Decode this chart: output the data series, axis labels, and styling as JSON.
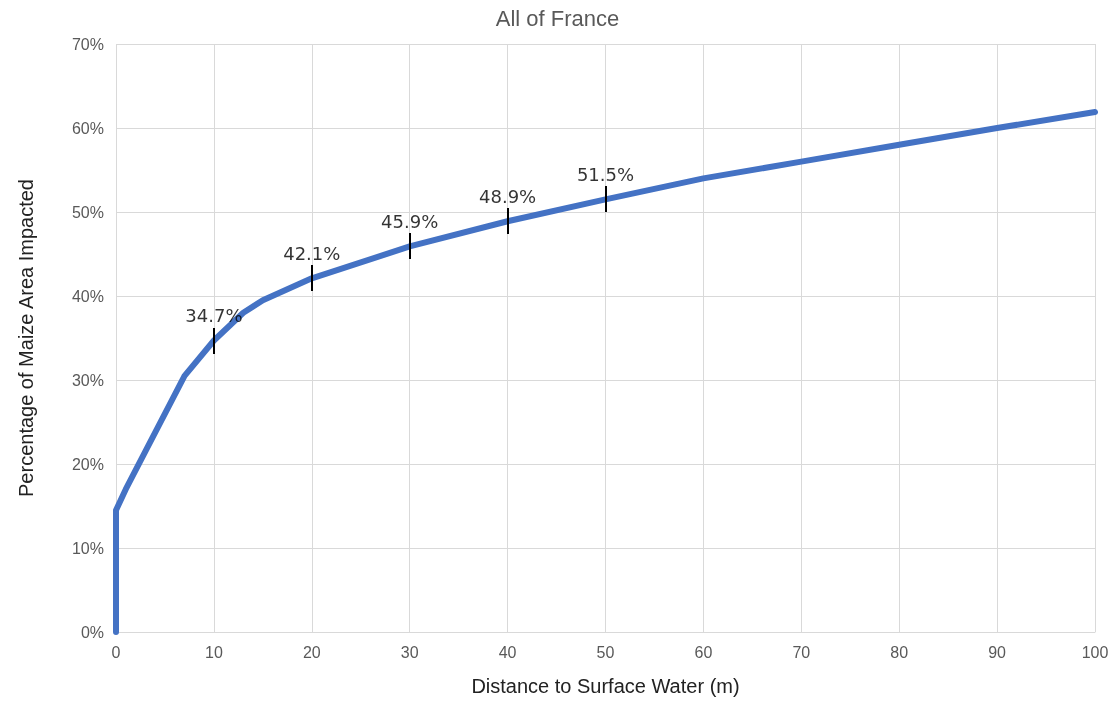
{
  "chart_data": {
    "type": "line",
    "title": "All of France",
    "xlabel": "Distance to Surface Water (m)",
    "ylabel": "Percentage of Maize Area Impacted",
    "x": [
      0,
      0,
      1,
      3,
      5,
      7,
      10,
      13,
      15,
      20,
      30,
      40,
      50,
      60,
      70,
      80,
      90,
      100
    ],
    "series": [
      {
        "color": "#4472c4",
        "values": [
          0,
          14.5,
          17,
          21.5,
          26,
          30.5,
          34.7,
          38,
          39.5,
          42.1,
          45.9,
          48.9,
          51.5,
          54,
          56,
          58,
          60,
          61.9
        ]
      }
    ],
    "xlim": [
      0,
      100
    ],
    "xticks": [
      0,
      10,
      20,
      30,
      40,
      50,
      60,
      70,
      80,
      90,
      100
    ],
    "ylim": [
      0,
      70
    ],
    "yticks": [
      {
        "value": 0,
        "label": "0%"
      },
      {
        "value": 10,
        "label": "10%"
      },
      {
        "value": 20,
        "label": "20%"
      },
      {
        "value": 30,
        "label": "30%"
      },
      {
        "value": 40,
        "label": "40%"
      },
      {
        "value": 50,
        "label": "50%"
      },
      {
        "value": 60,
        "label": "60%"
      },
      {
        "value": 70,
        "label": "70%"
      }
    ],
    "annotations": [
      {
        "text": "34.7%",
        "x": 10,
        "y": 34.7
      },
      {
        "text": "42.1%",
        "x": 20,
        "y": 42.1
      },
      {
        "text": "45.9%",
        "x": 30,
        "y": 45.9
      },
      {
        "text": "48.9%",
        "x": 40,
        "y": 48.9
      },
      {
        "text": "51.5%",
        "x": 50,
        "y": 51.5
      }
    ],
    "grid": true,
    "marker": "none",
    "line_style": "solid"
  }
}
